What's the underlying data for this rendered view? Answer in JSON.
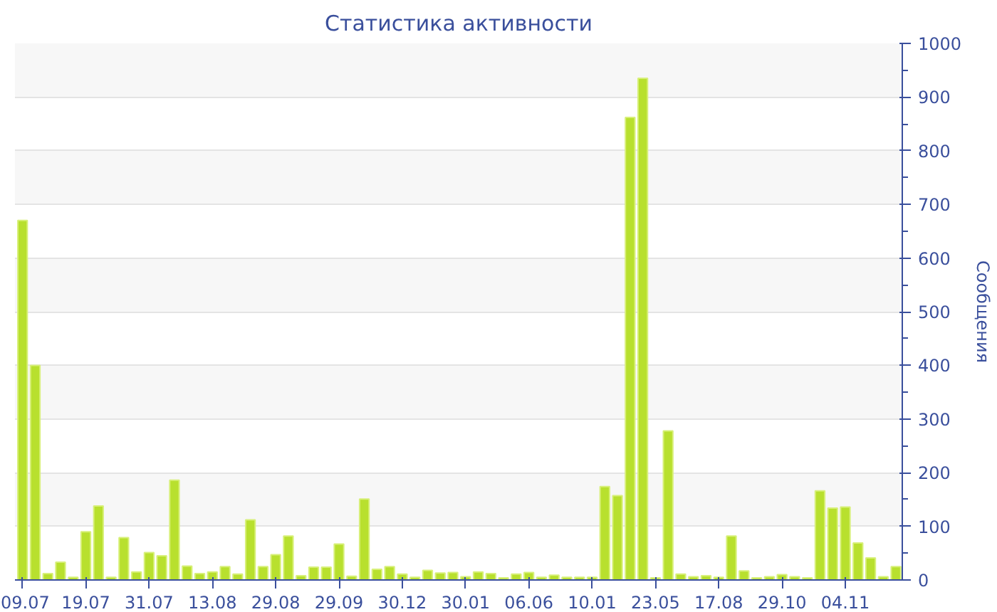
{
  "chart_data": {
    "type": "bar",
    "title": "Статистика активности",
    "ylabel": "Сообщения",
    "categories": [
      "09.07",
      null,
      null,
      null,
      null,
      "19.07",
      null,
      null,
      null,
      null,
      "31.07",
      null,
      null,
      null,
      null,
      "13.08",
      null,
      null,
      null,
      null,
      "29.08",
      null,
      null,
      null,
      null,
      "29.09",
      null,
      null,
      null,
      null,
      "30.12",
      null,
      null,
      null,
      null,
      "30.01",
      null,
      null,
      null,
      null,
      "06.06",
      null,
      null,
      null,
      null,
      "10.01",
      null,
      null,
      null,
      null,
      "23.05",
      null,
      null,
      null,
      null,
      "17.08",
      null,
      null,
      null,
      null,
      "29.10",
      null,
      null,
      null,
      null,
      "04.11",
      null,
      null,
      null,
      null
    ],
    "values": [
      670,
      400,
      12,
      33,
      5,
      90,
      138,
      5,
      79,
      15,
      51,
      45,
      186,
      26,
      12,
      15,
      25,
      11,
      112,
      25,
      47,
      82,
      8,
      24,
      24,
      67,
      7,
      151,
      20,
      25,
      11,
      5,
      18,
      13,
      14,
      6,
      15,
      12,
      4,
      11,
      14,
      5,
      9,
      5,
      5,
      5,
      174,
      157,
      862,
      935,
      4,
      278,
      11,
      6,
      8,
      5,
      82,
      17,
      4,
      6,
      10,
      6,
      4,
      166,
      134,
      136,
      69,
      41,
      6,
      25
    ],
    "color": "#b8e02e",
    "ylim": [
      0,
      1000
    ],
    "yticks": [
      0,
      100,
      200,
      300,
      400,
      500,
      600,
      700,
      800,
      900,
      1000
    ],
    "grid": "y"
  }
}
